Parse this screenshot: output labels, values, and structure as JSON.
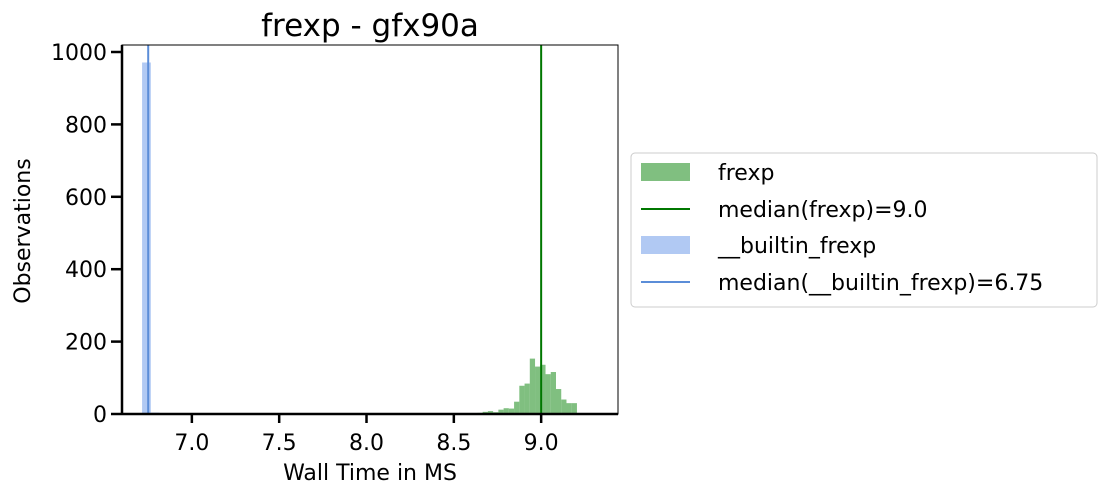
{
  "chart_data": {
    "type": "bar",
    "title": "frexp - gfx90a",
    "xlabel": "Wall Time in MS",
    "ylabel": "Observations",
    "xlim": [
      6.6,
      9.44
    ],
    "ylim": [
      0,
      1000
    ],
    "xticks": [
      "7.0",
      "7.5",
      "8.0",
      "8.5",
      "9.0"
    ],
    "yticks": [
      "0",
      "200",
      "400",
      "600",
      "800",
      "1000"
    ],
    "grid": false,
    "legend_placement": "right-outside",
    "series": [
      {
        "name": "frexp",
        "kind": "histogram",
        "color": "#55aa55",
        "bins": [
          {
            "x0": 8.605,
            "x1": 8.635,
            "value": 1
          },
          {
            "x0": 8.635,
            "x1": 8.665,
            "value": 3
          },
          {
            "x0": 8.665,
            "x1": 8.695,
            "value": 6
          },
          {
            "x0": 8.695,
            "x1": 8.725,
            "value": 8
          },
          {
            "x0": 8.725,
            "x1": 8.755,
            "value": 5
          },
          {
            "x0": 8.755,
            "x1": 8.785,
            "value": 12
          },
          {
            "x0": 8.785,
            "x1": 8.815,
            "value": 16
          },
          {
            "x0": 8.815,
            "x1": 8.845,
            "value": 15
          },
          {
            "x0": 8.845,
            "x1": 8.875,
            "value": 34
          },
          {
            "x0": 8.875,
            "x1": 8.905,
            "value": 78
          },
          {
            "x0": 8.905,
            "x1": 8.935,
            "value": 84
          },
          {
            "x0": 8.935,
            "x1": 8.965,
            "value": 153
          },
          {
            "x0": 8.965,
            "x1": 8.995,
            "value": 131
          },
          {
            "x0": 8.995,
            "x1": 9.025,
            "value": 136
          },
          {
            "x0": 9.025,
            "x1": 9.055,
            "value": 110
          },
          {
            "x0": 9.055,
            "x1": 9.085,
            "value": 116
          },
          {
            "x0": 9.085,
            "x1": 9.115,
            "value": 69
          },
          {
            "x0": 9.115,
            "x1": 9.145,
            "value": 40
          },
          {
            "x0": 9.145,
            "x1": 9.175,
            "value": 30
          },
          {
            "x0": 9.175,
            "x1": 9.205,
            "value": 30
          }
        ],
        "median": 9.0,
        "median_color": "#007700"
      },
      {
        "name": "__builtin_frexp",
        "kind": "histogram",
        "color": "#a9c3f2",
        "bins": [
          {
            "x0": 6.715,
            "x1": 6.765,
            "value": 971
          },
          {
            "x0": 6.765,
            "x1": 6.815,
            "value": 4
          }
        ],
        "median": 6.75,
        "median_color": "#5b8dd8"
      }
    ],
    "legend": [
      {
        "label": "frexp",
        "symbol": "patch",
        "color": "#55aa55"
      },
      {
        "label": "median(frexp)=9.0",
        "symbol": "line",
        "color": "#007700"
      },
      {
        "label": "__builtin_frexp",
        "symbol": "patch",
        "color": "#a9c3f2"
      },
      {
        "label": "median(__builtin_frexp)=6.75",
        "symbol": "line",
        "color": "#5b8dd8"
      }
    ]
  }
}
